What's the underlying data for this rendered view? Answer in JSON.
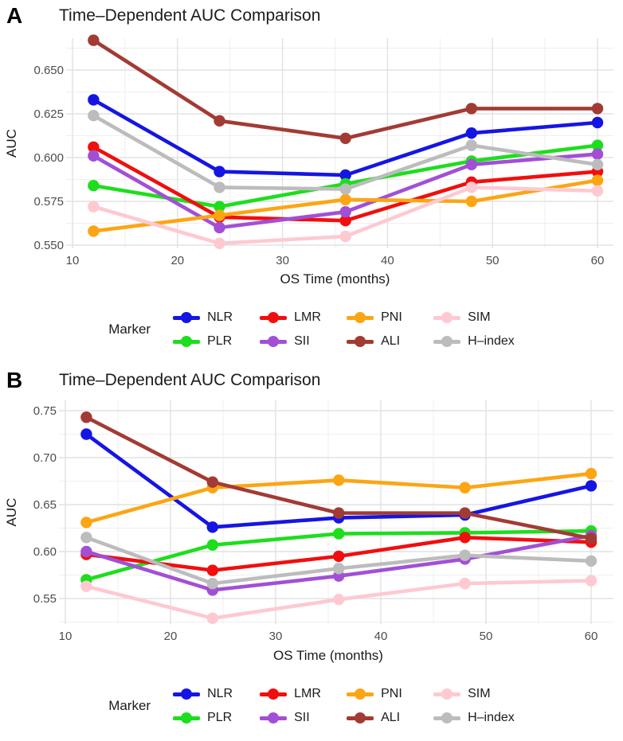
{
  "figure": {
    "panels": [
      {
        "label": "A",
        "title": "Time–Dependent AUC Comparison"
      },
      {
        "label": "B",
        "title": "Time–Dependent AUC Comparison"
      }
    ],
    "legend": {
      "title": "Marker",
      "rows": [
        [
          "NLR",
          "LMR",
          "PNI",
          "SIM"
        ],
        [
          "PLR",
          "SII",
          "ALI",
          "H–index"
        ]
      ]
    }
  },
  "colors": {
    "NLR": "#1515e3",
    "PLR": "#1dde1d",
    "LMR": "#f10e0e",
    "SII": "#a24fd6",
    "PNI": "#fca513",
    "ALI": "#a23b34",
    "SIM": "#fec9d1",
    "H-index": "#bcbcbc"
  },
  "chart_data": [
    {
      "type": "line",
      "panel": "A",
      "title": "Time–Dependent AUC Comparison",
      "xlabel": "OS Time (months)",
      "ylabel": "AUC",
      "x": [
        12,
        24,
        36,
        48,
        60
      ],
      "xticks": [
        10,
        20,
        30,
        40,
        50,
        60
      ],
      "yticks": [
        0.55,
        0.575,
        0.6,
        0.625,
        0.65
      ],
      "ytick_labels": [
        "0.550",
        "0.575",
        "0.600",
        "0.625",
        "0.650"
      ],
      "xlim": [
        9.4,
        61.5
      ],
      "ylim": [
        0.548,
        0.668
      ],
      "grid": "major+minor",
      "legend_position": "bottom",
      "series": [
        {
          "name": "NLR",
          "values": [
            0.633,
            0.592,
            0.59,
            0.614,
            0.62
          ]
        },
        {
          "name": "PLR",
          "values": [
            0.584,
            0.572,
            0.585,
            0.598,
            0.607
          ]
        },
        {
          "name": "LMR",
          "values": [
            0.606,
            0.566,
            0.564,
            0.586,
            0.592
          ]
        },
        {
          "name": "SII",
          "values": [
            0.601,
            0.56,
            0.569,
            0.596,
            0.602
          ]
        },
        {
          "name": "PNI",
          "values": [
            0.558,
            0.567,
            0.576,
            0.575,
            0.587
          ]
        },
        {
          "name": "ALI",
          "values": [
            0.667,
            0.621,
            0.611,
            0.628,
            0.628
          ]
        },
        {
          "name": "SIM",
          "values": [
            0.572,
            0.551,
            0.555,
            0.583,
            0.581
          ]
        },
        {
          "name": "H-index",
          "values": [
            0.624,
            0.583,
            0.582,
            0.607,
            0.596
          ]
        }
      ]
    },
    {
      "type": "line",
      "panel": "B",
      "title": "Time–Dependent AUC Comparison",
      "xlabel": "OS Time (months)",
      "ylabel": "AUC",
      "x": [
        12,
        24,
        36,
        48,
        60
      ],
      "xticks": [
        10,
        20,
        30,
        40,
        50,
        60
      ],
      "yticks": [
        0.55,
        0.6,
        0.65,
        0.7,
        0.75
      ],
      "ytick_labels": [
        "0.55",
        "0.60",
        "0.65",
        "0.70",
        "0.75"
      ],
      "xlim": [
        9.4,
        62.0
      ],
      "ylim": [
        0.526,
        0.756
      ],
      "grid": "major+minor",
      "legend_position": "bottom",
      "series": [
        {
          "name": "NLR",
          "values": [
            0.725,
            0.626,
            0.636,
            0.639,
            0.67
          ]
        },
        {
          "name": "PLR",
          "values": [
            0.57,
            0.607,
            0.619,
            0.62,
            0.622
          ]
        },
        {
          "name": "LMR",
          "values": [
            0.597,
            0.58,
            0.595,
            0.615,
            0.61
          ]
        },
        {
          "name": "SII",
          "values": [
            0.6,
            0.559,
            0.574,
            0.592,
            0.617
          ]
        },
        {
          "name": "PNI",
          "values": [
            0.631,
            0.668,
            0.676,
            0.668,
            0.683
          ]
        },
        {
          "name": "ALI",
          "values": [
            0.743,
            0.674,
            0.641,
            0.641,
            0.614
          ]
        },
        {
          "name": "SIM",
          "values": [
            0.563,
            0.529,
            0.549,
            0.566,
            0.569
          ]
        },
        {
          "name": "H-index",
          "values": [
            0.615,
            0.566,
            0.582,
            0.596,
            0.59
          ]
        }
      ]
    }
  ]
}
